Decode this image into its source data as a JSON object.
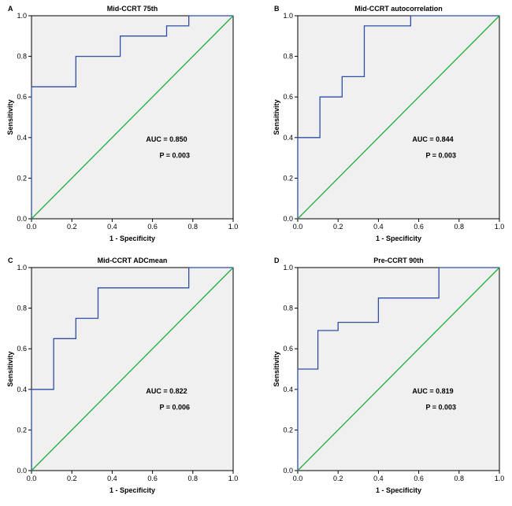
{
  "chart_data": [
    {
      "type": "line",
      "panel": "A",
      "title": "Mid-CCRT 75th",
      "x_label": "1 - Specificity",
      "y_label": "Sensitivity",
      "xlim": [
        0,
        1
      ],
      "ylim": [
        0,
        1
      ],
      "xticks": [
        {
          "value": 0,
          "label": "0.0"
        },
        {
          "value": 0.2,
          "label": "0.2"
        },
        {
          "value": 0.4,
          "label": "0.4"
        },
        {
          "value": 0.6,
          "label": "0.6"
        },
        {
          "value": 0.8,
          "label": "0.8"
        },
        {
          "value": 1,
          "label": "1.0"
        }
      ],
      "yticks": [
        {
          "value": 0,
          "label": "0.0"
        },
        {
          "value": 0.2,
          "label": "0.2"
        },
        {
          "value": 0.4,
          "label": "0.4"
        },
        {
          "value": 0.6,
          "label": "0.6"
        },
        {
          "value": 0.8,
          "label": "0.8"
        },
        {
          "value": 1,
          "label": "1.0"
        }
      ],
      "annotations": [
        "AUC = 0.850",
        "P = 0.003"
      ],
      "series": [
        {
          "color": "#2e4ea8",
          "x": [
            0,
            0,
            0.22,
            0.22,
            0.44,
            0.44,
            0.67,
            0.67,
            0.78,
            0.78,
            1
          ],
          "values": [
            0,
            0.65,
            0.65,
            0.8,
            0.8,
            0.9,
            0.9,
            0.95,
            0.95,
            1,
            1
          ]
        },
        {
          "color": "#1fae3c",
          "x": [
            0,
            1
          ],
          "values": [
            0,
            1
          ]
        }
      ]
    },
    {
      "type": "line",
      "panel": "B",
      "title": "Mid-CCRT autocorrelation",
      "x_label": "1 - Specificity",
      "y_label": "Sensitivity",
      "xlim": [
        0,
        1
      ],
      "ylim": [
        0,
        1
      ],
      "xticks": [
        {
          "value": 0,
          "label": "0.0"
        },
        {
          "value": 0.2,
          "label": "0.2"
        },
        {
          "value": 0.4,
          "label": "0.4"
        },
        {
          "value": 0.6,
          "label": "0.6"
        },
        {
          "value": 0.8,
          "label": "0.8"
        },
        {
          "value": 1,
          "label": "1.0"
        }
      ],
      "yticks": [
        {
          "value": 0,
          "label": "0.0"
        },
        {
          "value": 0.2,
          "label": "0.2"
        },
        {
          "value": 0.4,
          "label": "0.4"
        },
        {
          "value": 0.6,
          "label": "0.6"
        },
        {
          "value": 0.8,
          "label": "0.8"
        },
        {
          "value": 1,
          "label": "1.0"
        }
      ],
      "annotations": [
        "AUC = 0.844",
        "P = 0.003"
      ],
      "series": [
        {
          "color": "#2e4ea8",
          "x": [
            0,
            0,
            0.11,
            0.11,
            0.22,
            0.22,
            0.33,
            0.33,
            0.56,
            0.56,
            1
          ],
          "values": [
            0,
            0.4,
            0.4,
            0.6,
            0.6,
            0.7,
            0.7,
            0.95,
            0.95,
            1,
            1
          ]
        },
        {
          "color": "#1fae3c",
          "x": [
            0,
            1
          ],
          "values": [
            0,
            1
          ]
        }
      ]
    },
    {
      "type": "line",
      "panel": "C",
      "title": "Mid-CCRT ADCmean",
      "x_label": "1 - Specificity",
      "y_label": "Sensitivity",
      "xlim": [
        0,
        1
      ],
      "ylim": [
        0,
        1
      ],
      "xticks": [
        {
          "value": 0,
          "label": "0.0"
        },
        {
          "value": 0.2,
          "label": "0.2"
        },
        {
          "value": 0.4,
          "label": "0.4"
        },
        {
          "value": 0.6,
          "label": "0.6"
        },
        {
          "value": 0.8,
          "label": "0.8"
        },
        {
          "value": 1,
          "label": "1.0"
        }
      ],
      "yticks": [
        {
          "value": 0,
          "label": "0.0"
        },
        {
          "value": 0.2,
          "label": "0.2"
        },
        {
          "value": 0.4,
          "label": "0.4"
        },
        {
          "value": 0.6,
          "label": "0.6"
        },
        {
          "value": 0.8,
          "label": "0.8"
        },
        {
          "value": 1,
          "label": "1.0"
        }
      ],
      "annotations": [
        "AUC = 0.822",
        "P = 0.006"
      ],
      "series": [
        {
          "color": "#2e4ea8",
          "x": [
            0,
            0,
            0.11,
            0.11,
            0.22,
            0.22,
            0.33,
            0.33,
            0.78,
            0.78,
            1
          ],
          "values": [
            0,
            0.4,
            0.4,
            0.65,
            0.65,
            0.75,
            0.75,
            0.9,
            0.9,
            1,
            1
          ]
        },
        {
          "color": "#1fae3c",
          "x": [
            0,
            1
          ],
          "values": [
            0,
            1
          ]
        }
      ]
    },
    {
      "type": "line",
      "panel": "D",
      "title": "Pre-CCRT 90th",
      "x_label": "1 - Specificity",
      "y_label": "Sensitivity",
      "xlim": [
        0,
        1
      ],
      "ylim": [
        0,
        1
      ],
      "xticks": [
        {
          "value": 0,
          "label": "0.0"
        },
        {
          "value": 0.2,
          "label": "0.2"
        },
        {
          "value": 0.4,
          "label": "0.4"
        },
        {
          "value": 0.6,
          "label": "0.6"
        },
        {
          "value": 0.8,
          "label": "0.8"
        },
        {
          "value": 1,
          "label": "1.0"
        }
      ],
      "yticks": [
        {
          "value": 0,
          "label": "0.0"
        },
        {
          "value": 0.2,
          "label": "0.2"
        },
        {
          "value": 0.4,
          "label": "0.4"
        },
        {
          "value": 0.6,
          "label": "0.6"
        },
        {
          "value": 0.8,
          "label": "0.8"
        },
        {
          "value": 1,
          "label": "1.0"
        }
      ],
      "annotations": [
        "AUC = 0.819",
        "P = 0.003"
      ],
      "series": [
        {
          "color": "#2e4ea8",
          "x": [
            0,
            0,
            0.1,
            0.1,
            0.2,
            0.2,
            0.4,
            0.4,
            0.7,
            0.7,
            1
          ],
          "values": [
            0,
            0.5,
            0.5,
            0.69,
            0.69,
            0.73,
            0.73,
            0.85,
            0.85,
            1,
            1
          ]
        },
        {
          "color": "#1fae3c",
          "x": [
            0,
            1
          ],
          "values": [
            0,
            1
          ]
        }
      ]
    }
  ]
}
